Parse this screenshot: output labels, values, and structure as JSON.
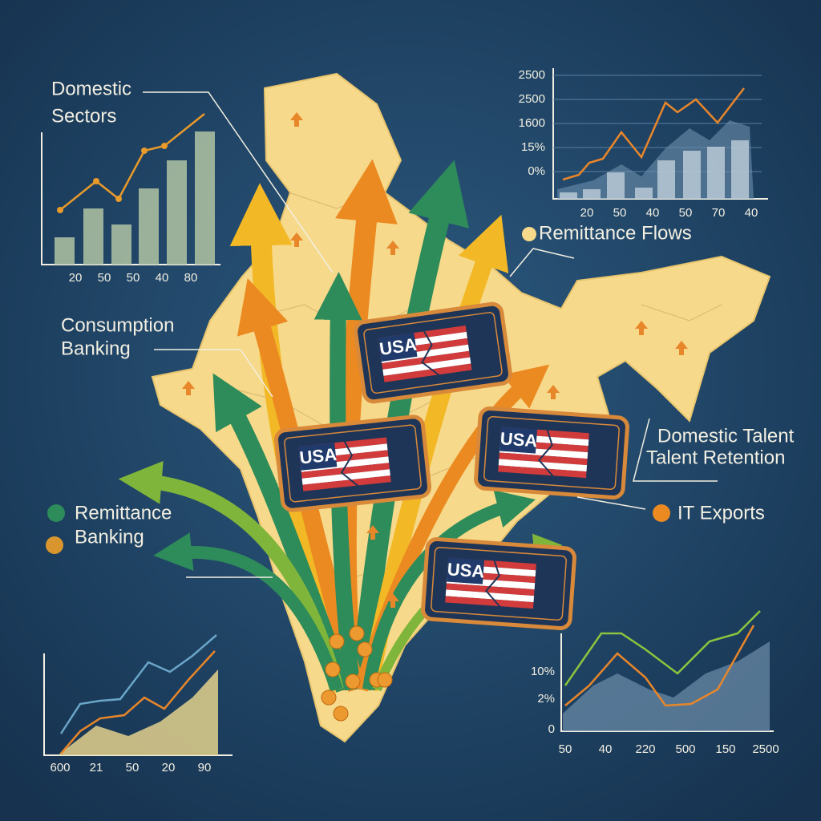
{
  "callouts": {
    "domestic_sectors": [
      "Domestic",
      "Sectors"
    ],
    "remittance_flows": "Remittance Flows",
    "consumption_banking": [
      "Consumption",
      "Banking"
    ],
    "domestic_talent": [
      "Domestic Talent",
      "Talent Retention"
    ],
    "remittance_banking": [
      "Remittance",
      "Banking"
    ],
    "it_exports": "IT Exports"
  },
  "stamps": [
    "USA",
    "USA",
    "USA",
    "USA"
  ],
  "charts": {
    "top_left": {
      "xticks": [
        "20",
        "50",
        "50",
        "40",
        "80"
      ]
    },
    "top_right": {
      "yticks": [
        "2500",
        "2500",
        "1600",
        "15%",
        "0%"
      ],
      "xticks": [
        "20",
        "50",
        "40",
        "50",
        "70",
        "40"
      ]
    },
    "bottom_left": {
      "xticks": [
        "600",
        "21",
        "50",
        "20",
        "90"
      ]
    },
    "bottom_right": {
      "yticks": [
        "10%",
        "2%",
        "0"
      ],
      "xticks": [
        "50",
        "40",
        "220",
        "500",
        "150",
        "2500"
      ]
    }
  }
}
